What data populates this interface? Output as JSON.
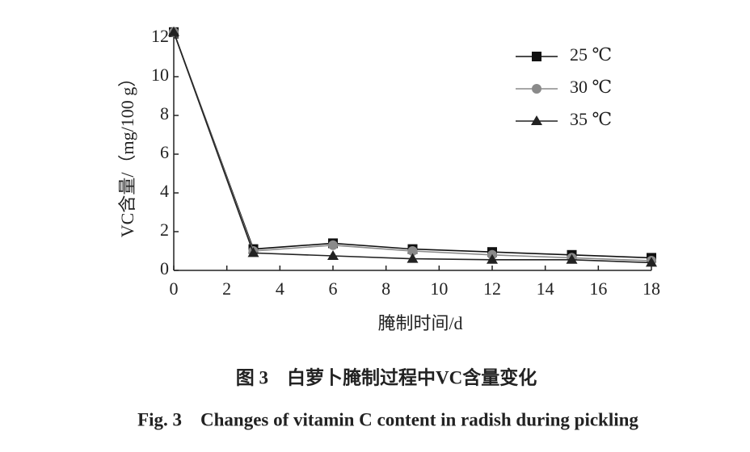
{
  "chart_data": {
    "type": "line",
    "x_label": "腌制时间/d",
    "y_label": "VC含量/（mg/100 g）",
    "caption_cn": "图 3　白萝卜腌制过程中VC含量变化",
    "caption_en": "Fig. 3　Changes of vitamin C content in radish during pickling",
    "x": [
      0,
      3,
      6,
      9,
      12,
      15,
      18
    ],
    "series": [
      {
        "name": "25 ℃",
        "color": "#111111",
        "marker": "square",
        "values": [
          12.3,
          1.1,
          1.4,
          1.1,
          0.95,
          0.8,
          0.65
        ]
      },
      {
        "name": "30 ℃",
        "color": "#8a8a8a",
        "marker": "circle",
        "values": [
          12.3,
          1.0,
          1.3,
          1.0,
          0.8,
          0.65,
          0.5
        ]
      },
      {
        "name": "35 ℃",
        "color": "#222222",
        "marker": "triangle",
        "values": [
          12.3,
          0.9,
          0.75,
          0.6,
          0.55,
          0.55,
          0.4
        ]
      }
    ],
    "xlim": [
      0,
      18
    ],
    "xticks": [
      0,
      2,
      4,
      6,
      8,
      10,
      12,
      14,
      16,
      18
    ],
    "ylim": [
      0,
      12.5
    ],
    "yticks": [
      0,
      2,
      4,
      6,
      8,
      10,
      12
    ],
    "grid": false,
    "legend": "upper right"
  }
}
